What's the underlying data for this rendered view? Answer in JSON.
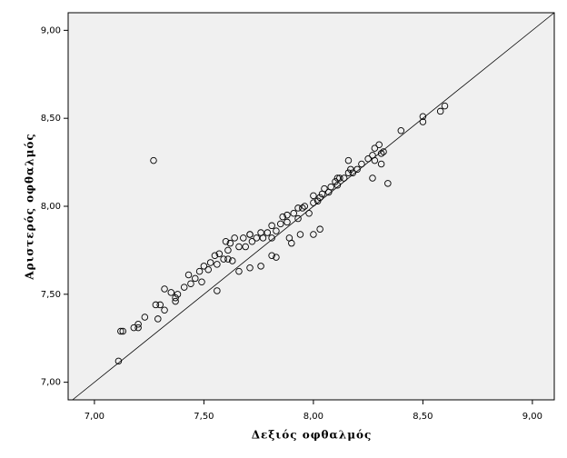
{
  "chart_data": {
    "type": "scatter",
    "x_label": "Δεξιός οφθαλμός",
    "y_label": "Αριστερός οφθαλμός",
    "color": "#000000",
    "xlim": [
      6.88,
      9.1
    ],
    "ylim": [
      6.9,
      9.1
    ],
    "xticks": [
      {
        "value": 7,
        "label": "7,00"
      },
      {
        "value": 7.5,
        "label": "7,50"
      },
      {
        "value": 8,
        "label": "8,00"
      },
      {
        "value": 8.5,
        "label": "8,50"
      },
      {
        "value": 9,
        "label": "9,00"
      }
    ],
    "yticks": [
      {
        "value": 7,
        "label": "7,00"
      },
      {
        "value": 7.5,
        "label": "7,50"
      },
      {
        "value": 8,
        "label": "8,00"
      },
      {
        "value": 8.5,
        "label": "8,50"
      },
      {
        "value": 9,
        "label": "9,00"
      }
    ],
    "x": [
      7.11,
      7.12,
      7.13,
      7.18,
      7.2,
      7.2,
      7.23,
      7.27,
      7.28,
      7.3,
      7.29,
      7.32,
      7.32,
      7.35,
      7.37,
      7.38,
      7.37,
      7.41,
      7.44,
      7.46,
      7.43,
      7.48,
      7.49,
      7.5,
      7.52,
      7.53,
      7.56,
      7.55,
      7.57,
      7.59,
      7.61,
      7.62,
      7.6,
      7.64,
      7.66,
      7.63,
      7.68,
      7.69,
      7.71,
      7.72,
      7.71,
      7.74,
      7.76,
      7.77,
      7.79,
      7.81,
      7.81,
      7.83,
      7.85,
      7.86,
      7.88,
      7.88,
      7.91,
      7.93,
      7.93,
      7.95,
      7.96,
      7.98,
      8.0,
      8.02,
      8.0,
      8.03,
      8.04,
      8.05,
      8.07,
      8.08,
      8.1,
      8.11,
      8.12,
      8.14,
      8.16,
      8.17,
      8.18,
      8.2,
      8.16,
      8.22,
      8.25,
      8.27,
      8.28,
      8.3,
      8.31,
      8.31,
      8.28,
      8.27,
      8.34,
      8.32,
      8.4,
      8.5,
      8.5,
      8.58,
      8.6,
      7.56,
      7.61,
      7.81,
      7.94,
      8.03,
      8.0,
      7.89,
      7.76,
      7.83,
      8.11,
      7.9,
      7.71,
      7.66
    ],
    "values": [
      7.12,
      7.29,
      7.29,
      7.31,
      7.33,
      7.31,
      7.37,
      8.26,
      7.44,
      7.44,
      7.36,
      7.41,
      7.53,
      7.51,
      7.48,
      7.5,
      7.46,
      7.54,
      7.56,
      7.59,
      7.61,
      7.63,
      7.57,
      7.66,
      7.64,
      7.68,
      7.67,
      7.72,
      7.73,
      7.7,
      7.75,
      7.79,
      7.8,
      7.82,
      7.77,
      7.69,
      7.82,
      7.77,
      7.84,
      7.8,
      7.84,
      7.82,
      7.85,
      7.82,
      7.85,
      7.82,
      7.89,
      7.86,
      7.9,
      7.94,
      7.91,
      7.95,
      7.96,
      7.93,
      7.99,
      7.99,
      8.0,
      7.96,
      8.02,
      8.03,
      8.06,
      8.05,
      8.07,
      8.1,
      8.08,
      8.11,
      8.14,
      8.12,
      8.16,
      8.16,
      8.19,
      8.21,
      8.19,
      8.21,
      8.26,
      8.24,
      8.27,
      8.29,
      8.33,
      8.35,
      8.3,
      8.24,
      8.26,
      8.16,
      8.13,
      8.31,
      8.43,
      8.48,
      8.51,
      8.54,
      8.57,
      7.52,
      7.7,
      7.72,
      7.84,
      7.87,
      7.84,
      7.82,
      7.66,
      7.71,
      8.16,
      7.79,
      7.65,
      7.63
    ]
  }
}
